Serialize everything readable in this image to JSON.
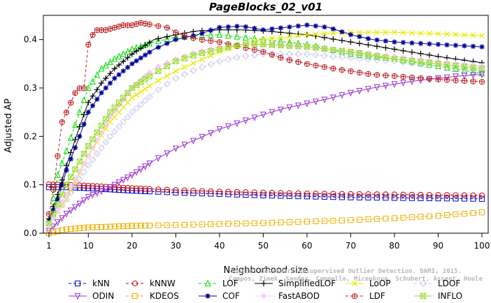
{
  "chart_data": {
    "type": "line",
    "title": "PageBlocks_02_v01",
    "xlabel": "Neighborhood size",
    "ylabel": "Adjusted AP",
    "xlim": [
      1,
      100
    ],
    "ylim": [
      0,
      0.45
    ],
    "xticks": [
      "1",
      "10",
      "20",
      "30",
      "40",
      "50",
      "60",
      "70",
      "80",
      "90",
      "100"
    ],
    "yticks": [
      "0.0",
      "0.1",
      "0.2",
      "0.3",
      "0.4"
    ],
    "grid": false,
    "legend_position": "bottom",
    "credit": [
      "Source: Benchmark Unsupervised Outlier Detection. DAMI, 2015.",
      "Campos, Zimek, Sander, Campello, Micenkova, Schubert, Assent, Houle"
    ],
    "series": [
      {
        "name": "kNN",
        "color": "#0000cc",
        "marker": "square",
        "dash": "4,3",
        "points": [
          [
            1,
            0.095
          ],
          [
            5,
            0.095
          ],
          [
            10,
            0.093
          ],
          [
            20,
            0.088
          ],
          [
            30,
            0.084
          ],
          [
            40,
            0.081
          ],
          [
            50,
            0.078
          ],
          [
            60,
            0.076
          ],
          [
            70,
            0.074
          ],
          [
            80,
            0.073
          ],
          [
            90,
            0.072
          ],
          [
            100,
            0.071
          ]
        ]
      },
      {
        "name": "kNNW",
        "color": "#cc0000",
        "marker": "circle",
        "dash": "4,3",
        "points": [
          [
            1,
            0.101
          ],
          [
            5,
            0.1
          ],
          [
            10,
            0.098
          ],
          [
            20,
            0.093
          ],
          [
            30,
            0.089
          ],
          [
            40,
            0.086
          ],
          [
            50,
            0.084
          ],
          [
            60,
            0.082
          ],
          [
            70,
            0.081
          ],
          [
            80,
            0.08
          ],
          [
            90,
            0.079
          ],
          [
            100,
            0.078
          ]
        ]
      },
      {
        "name": "LOF",
        "color": "#00dd00",
        "marker": "triangle-up",
        "dash": "4,3",
        "points": [
          [
            1,
            0.025
          ],
          [
            3,
            0.12
          ],
          [
            5,
            0.17
          ],
          [
            8,
            0.25
          ],
          [
            10,
            0.3
          ],
          [
            13,
            0.34
          ],
          [
            16,
            0.36
          ],
          [
            20,
            0.38
          ],
          [
            25,
            0.395
          ],
          [
            30,
            0.405
          ],
          [
            35,
            0.408
          ],
          [
            40,
            0.41
          ],
          [
            45,
            0.405
          ],
          [
            50,
            0.4
          ],
          [
            60,
            0.39
          ],
          [
            70,
            0.37
          ],
          [
            80,
            0.36
          ],
          [
            90,
            0.345
          ],
          [
            100,
            0.33
          ]
        ]
      },
      {
        "name": "SimplifiedLOF",
        "color": "#000000",
        "marker": "plus",
        "dash": "",
        "points": [
          [
            1,
            0.03
          ],
          [
            3,
            0.08
          ],
          [
            5,
            0.14
          ],
          [
            8,
            0.22
          ],
          [
            10,
            0.27
          ],
          [
            13,
            0.31
          ],
          [
            16,
            0.34
          ],
          [
            20,
            0.37
          ],
          [
            25,
            0.4
          ],
          [
            30,
            0.41
          ],
          [
            35,
            0.418
          ],
          [
            40,
            0.42
          ],
          [
            45,
            0.42
          ],
          [
            50,
            0.418
          ],
          [
            60,
            0.41
          ],
          [
            70,
            0.395
          ],
          [
            80,
            0.38
          ],
          [
            90,
            0.365
          ],
          [
            100,
            0.352
          ]
        ]
      },
      {
        "name": "LoOP",
        "color": "#e8e800",
        "marker": "x",
        "dash": "",
        "points": [
          [
            1,
            0.02
          ],
          [
            5,
            0.07
          ],
          [
            10,
            0.16
          ],
          [
            15,
            0.23
          ],
          [
            20,
            0.28
          ],
          [
            25,
            0.31
          ],
          [
            30,
            0.335
          ],
          [
            35,
            0.355
          ],
          [
            40,
            0.375
          ],
          [
            45,
            0.39
          ],
          [
            50,
            0.4
          ],
          [
            60,
            0.41
          ],
          [
            70,
            0.415
          ],
          [
            80,
            0.415
          ],
          [
            90,
            0.412
          ],
          [
            100,
            0.408
          ]
        ]
      },
      {
        "name": "LDOF",
        "color": "#c8c8f0",
        "marker": "diamond",
        "dash": "4,3",
        "points": [
          [
            1,
            0.02
          ],
          [
            5,
            0.07
          ],
          [
            10,
            0.14
          ],
          [
            15,
            0.2
          ],
          [
            20,
            0.25
          ],
          [
            25,
            0.29
          ],
          [
            30,
            0.32
          ],
          [
            35,
            0.34
          ],
          [
            40,
            0.355
          ],
          [
            45,
            0.365
          ],
          [
            50,
            0.37
          ],
          [
            60,
            0.37
          ],
          [
            70,
            0.362
          ],
          [
            80,
            0.355
          ],
          [
            90,
            0.345
          ],
          [
            100,
            0.335
          ]
        ]
      },
      {
        "name": "ODIN",
        "color": "#9933cc",
        "marker": "triangle-down",
        "dash": "",
        "points": [
          [
            1,
            0.005
          ],
          [
            5,
            0.04
          ],
          [
            10,
            0.075
          ],
          [
            15,
            0.095
          ],
          [
            20,
            0.12
          ],
          [
            25,
            0.15
          ],
          [
            30,
            0.175
          ],
          [
            35,
            0.195
          ],
          [
            40,
            0.215
          ],
          [
            45,
            0.23
          ],
          [
            50,
            0.245
          ],
          [
            55,
            0.258
          ],
          [
            60,
            0.268
          ],
          [
            65,
            0.278
          ],
          [
            70,
            0.29
          ],
          [
            75,
            0.3
          ],
          [
            80,
            0.308
          ],
          [
            85,
            0.315
          ],
          [
            90,
            0.32
          ],
          [
            95,
            0.325
          ],
          [
            100,
            0.328
          ]
        ]
      },
      {
        "name": "KDEOS",
        "color": "#f0b000",
        "marker": "square",
        "dash": "4,3",
        "points": [
          [
            1,
            0.0
          ],
          [
            5,
            0.008
          ],
          [
            10,
            0.012
          ],
          [
            20,
            0.015
          ],
          [
            30,
            0.017
          ],
          [
            40,
            0.019
          ],
          [
            50,
            0.021
          ],
          [
            60,
            0.024
          ],
          [
            70,
            0.027
          ],
          [
            80,
            0.031
          ],
          [
            90,
            0.036
          ],
          [
            100,
            0.043
          ]
        ]
      },
      {
        "name": "COF",
        "color": "#000099",
        "marker": "star",
        "dash": "",
        "points": [
          [
            1,
            0.025
          ],
          [
            3,
            0.07
          ],
          [
            5,
            0.13
          ],
          [
            8,
            0.2
          ],
          [
            10,
            0.25
          ],
          [
            13,
            0.29
          ],
          [
            16,
            0.32
          ],
          [
            20,
            0.35
          ],
          [
            25,
            0.38
          ],
          [
            30,
            0.4
          ],
          [
            35,
            0.41
          ],
          [
            40,
            0.425
          ],
          [
            45,
            0.428
          ],
          [
            50,
            0.42
          ],
          [
            55,
            0.425
          ],
          [
            60,
            0.43
          ],
          [
            65,
            0.425
          ],
          [
            70,
            0.41
          ],
          [
            75,
            0.4
          ],
          [
            80,
            0.395
          ],
          [
            90,
            0.39
          ],
          [
            100,
            0.385
          ]
        ]
      },
      {
        "name": "FastABOD",
        "color": "#ffc8ff",
        "marker": "diamond-filled",
        "dash": "",
        "points": [
          [
            1,
            0.02
          ],
          [
            5,
            0.08
          ],
          [
            10,
            0.16
          ],
          [
            15,
            0.24
          ],
          [
            20,
            0.3
          ],
          [
            25,
            0.34
          ],
          [
            30,
            0.36
          ],
          [
            35,
            0.375
          ],
          [
            40,
            0.385
          ],
          [
            45,
            0.39
          ],
          [
            50,
            0.39
          ],
          [
            60,
            0.385
          ],
          [
            70,
            0.375
          ],
          [
            80,
            0.365
          ],
          [
            90,
            0.355
          ],
          [
            100,
            0.345
          ]
        ]
      },
      {
        "name": "LDF",
        "color": "#bb2222",
        "marker": "circle-plus",
        "dash": "4,3",
        "points": [
          [
            1,
            0.04
          ],
          [
            2,
            0.09
          ],
          [
            3,
            0.16
          ],
          [
            4,
            0.23
          ],
          [
            5,
            0.25
          ],
          [
            6,
            0.27
          ],
          [
            7,
            0.29
          ],
          [
            8,
            0.3
          ],
          [
            9,
            0.3
          ],
          [
            10,
            0.39
          ],
          [
            11,
            0.41
          ],
          [
            12,
            0.42
          ],
          [
            14,
            0.42
          ],
          [
            16,
            0.425
          ],
          [
            18,
            0.43
          ],
          [
            20,
            0.43
          ],
          [
            22,
            0.435
          ],
          [
            25,
            0.43
          ],
          [
            28,
            0.425
          ],
          [
            30,
            0.415
          ],
          [
            33,
            0.405
          ],
          [
            36,
            0.4
          ],
          [
            40,
            0.395
          ],
          [
            45,
            0.385
          ],
          [
            50,
            0.375
          ],
          [
            55,
            0.36
          ],
          [
            60,
            0.35
          ],
          [
            65,
            0.342
          ],
          [
            70,
            0.335
          ],
          [
            75,
            0.328
          ],
          [
            80,
            0.325
          ],
          [
            90,
            0.318
          ],
          [
            100,
            0.313
          ]
        ]
      },
      {
        "name": "INFLO",
        "color": "#99dd33",
        "marker": "hexagon",
        "dash": "",
        "points": [
          [
            1,
            0.02
          ],
          [
            5,
            0.1
          ],
          [
            10,
            0.18
          ],
          [
            15,
            0.25
          ],
          [
            20,
            0.3
          ],
          [
            25,
            0.33
          ],
          [
            30,
            0.355
          ],
          [
            35,
            0.37
          ],
          [
            40,
            0.38
          ],
          [
            45,
            0.39
          ],
          [
            50,
            0.39
          ],
          [
            60,
            0.385
          ],
          [
            70,
            0.375
          ],
          [
            80,
            0.36
          ],
          [
            90,
            0.35
          ],
          [
            100,
            0.34
          ]
        ]
      }
    ],
    "legend_order": [
      [
        "kNN",
        "kNNW",
        "LOF",
        "SimplifiedLOF",
        "LoOP",
        "LDOF"
      ],
      [
        "ODIN",
        "KDEOS",
        "COF",
        "FastABOD",
        "LDF",
        "INFLO"
      ]
    ]
  }
}
